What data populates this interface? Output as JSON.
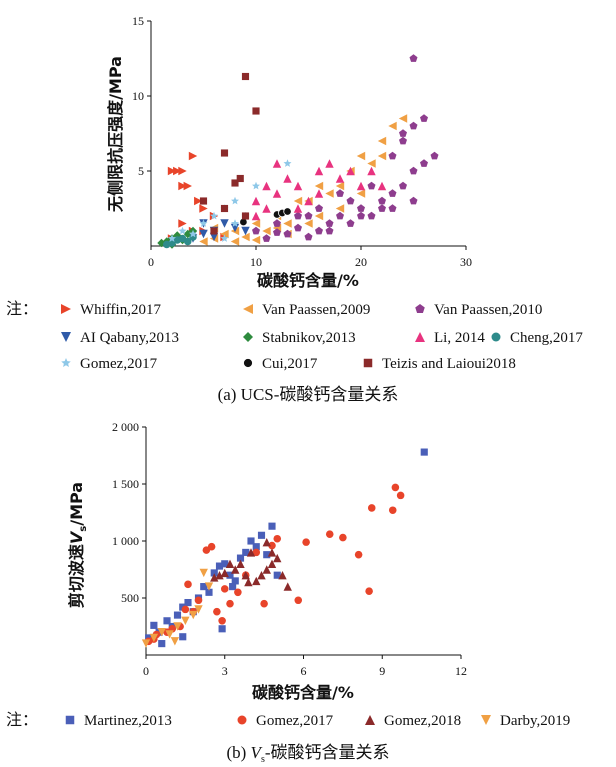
{
  "chart_data": [
    {
      "type": "scatter",
      "xlabel": "碳酸钙含量/%",
      "ylabel": "无侧限抗压强度/MPa",
      "xlim": [
        0,
        30
      ],
      "ylim": [
        0,
        15
      ],
      "x_ticks": [
        "0",
        "10",
        "20",
        "30"
      ],
      "y_ticks": [
        "5",
        "10",
        "15"
      ],
      "caption": "(a) UCS-碳酸钙含量关系",
      "legend_prefix": "注：",
      "series": [
        {
          "name": "Whiffin,2017",
          "marker": "tri-right",
          "color": "#e8442a",
          "points": [
            [
              2,
              5
            ],
            [
              2.5,
              5
            ],
            [
              3,
              5
            ],
            [
              3,
              4
            ],
            [
              3.5,
              4
            ],
            [
              4,
              6
            ],
            [
              4.5,
              3
            ],
            [
              5,
              2.5
            ],
            [
              3,
              1.5
            ],
            [
              4,
              1
            ],
            [
              2,
              0.5
            ],
            [
              6,
              2
            ],
            [
              5,
              1
            ],
            [
              7,
              0.6
            ]
          ]
        },
        {
          "name": "Van Paassen,2009",
          "marker": "tri-left",
          "color": "#f0a044",
          "points": [
            [
              5,
              0.3
            ],
            [
              6,
              0.5
            ],
            [
              7,
              0.8
            ],
            [
              8,
              1
            ],
            [
              9,
              0.6
            ],
            [
              10,
              1.5
            ],
            [
              11,
              1
            ],
            [
              12,
              2
            ],
            [
              13,
              1.5
            ],
            [
              14,
              3
            ],
            [
              15,
              3
            ],
            [
              16,
              4
            ],
            [
              17,
              3.5
            ],
            [
              18,
              4
            ],
            [
              19,
              5
            ],
            [
              20,
              6
            ],
            [
              21,
              5.5
            ],
            [
              22,
              7
            ],
            [
              23,
              8
            ],
            [
              24,
              8.5
            ],
            [
              22,
              6
            ],
            [
              20,
              3.5
            ],
            [
              18,
              2.5
            ],
            [
              16,
              2
            ],
            [
              15,
              1.5
            ],
            [
              13,
              0.8
            ],
            [
              12,
              1.2
            ],
            [
              10,
              0.4
            ],
            [
              8,
              0.3
            ],
            [
              6,
              1.2
            ]
          ]
        },
        {
          "name": "Van Paassen,2010",
          "marker": "pentagon",
          "color": "#8e3d8e",
          "points": [
            [
              10,
              1
            ],
            [
              12,
              1.5
            ],
            [
              13,
              0.8
            ],
            [
              14,
              1.2
            ],
            [
              15,
              2
            ],
            [
              16,
              1
            ],
            [
              17,
              1.5
            ],
            [
              18,
              2
            ],
            [
              19,
              3
            ],
            [
              20,
              2.5
            ],
            [
              21,
              4
            ],
            [
              22,
              3
            ],
            [
              23,
              3.5
            ],
            [
              24,
              4
            ],
            [
              25,
              5
            ],
            [
              26,
              5.5
            ],
            [
              27,
              6
            ],
            [
              23,
              6
            ],
            [
              24,
              7
            ],
            [
              25,
              8
            ],
            [
              24,
              7.5
            ],
            [
              26,
              8.5
            ],
            [
              25,
              12.5
            ],
            [
              20,
              2
            ],
            [
              22,
              2.5
            ],
            [
              18,
              3.5
            ],
            [
              16,
              2.5
            ],
            [
              17,
              1
            ],
            [
              19,
              1.5
            ],
            [
              21,
              2
            ],
            [
              23,
              2.5
            ],
            [
              25,
              3
            ],
            [
              15,
              0.6
            ],
            [
              14,
              2
            ],
            [
              12,
              0.9
            ],
            [
              11,
              0.5
            ]
          ]
        },
        {
          "name": "AI Qabany,2013",
          "marker": "tri-down",
          "color": "#2f5aa8",
          "points": [
            [
              4,
              0.5
            ],
            [
              5,
              0.8
            ],
            [
              6,
              1
            ],
            [
              7,
              1.5
            ],
            [
              8,
              1.2
            ],
            [
              9,
              1
            ],
            [
              5,
              1.5
            ],
            [
              6,
              0.6
            ]
          ]
        },
        {
          "name": "Stabnikov,2013",
          "marker": "diamond",
          "color": "#2e8b3e",
          "points": [
            [
              1,
              0.2
            ],
            [
              1.5,
              0.3
            ],
            [
              2,
              0.5
            ],
            [
              2.5,
              0.7
            ],
            [
              3,
              0.4
            ],
            [
              3.5,
              0.8
            ],
            [
              4,
              1
            ],
            [
              2,
              0.1
            ]
          ]
        },
        {
          "name": "Li, 2014",
          "marker": "tri-up",
          "color": "#e8337f",
          "points": [
            [
              10,
              3
            ],
            [
              11,
              2.5
            ],
            [
              12,
              5.5
            ],
            [
              13,
              4.5
            ],
            [
              14,
              4
            ],
            [
              15,
              3
            ],
            [
              16,
              5
            ],
            [
              17,
              5.5
            ],
            [
              18,
              4.5
            ],
            [
              19,
              5
            ],
            [
              20,
              4
            ],
            [
              21,
              5
            ],
            [
              22,
              4
            ],
            [
              16,
              3.5
            ],
            [
              14,
              2.5
            ],
            [
              12,
              3.5
            ],
            [
              10,
              2
            ],
            [
              11,
              4
            ]
          ]
        },
        {
          "name": "Cheng,2017",
          "marker": "circle",
          "color": "#2e8b8b",
          "points": [
            [
              2,
              0.2
            ],
            [
              2.5,
              0.4
            ],
            [
              3,
              0.5
            ],
            [
              3.5,
              0.3
            ],
            [
              4,
              0.6
            ],
            [
              1.5,
              0.1
            ]
          ]
        },
        {
          "name": "Gomez,2017",
          "marker": "star",
          "color": "#8ec8e8",
          "points": [
            [
              2,
              0.5
            ],
            [
              3,
              1
            ],
            [
              4,
              0.8
            ],
            [
              5,
              1.5
            ],
            [
              6,
              2
            ],
            [
              7,
              2.5
            ],
            [
              8,
              3
            ],
            [
              9,
              2
            ],
            [
              10,
              4
            ],
            [
              13,
              5.5
            ],
            [
              6,
              1
            ],
            [
              7,
              0.5
            ],
            [
              8,
              1.5
            ]
          ]
        },
        {
          "name": "Cui,2017",
          "marker": "ball",
          "color": "#111111",
          "points": [
            [
              8.8,
              1.6
            ],
            [
              12,
              2.1
            ],
            [
              12.5,
              2.2
            ],
            [
              13,
              2.3
            ]
          ]
        },
        {
          "name": "Teizis and Laioui2018",
          "marker": "square",
          "color": "#8b2a2a",
          "points": [
            [
              6,
              1
            ],
            [
              7,
              2.5
            ],
            [
              7,
              6.2
            ],
            [
              8,
              4.2
            ],
            [
              8.5,
              4.5
            ],
            [
              9,
              11.3
            ],
            [
              10,
              9
            ],
            [
              5,
              3
            ],
            [
              9,
              2
            ]
          ]
        }
      ]
    },
    {
      "type": "scatter",
      "xlabel": "碳酸钙含量/%",
      "ylabel_prefix": "剪切波速",
      "ylabel_var": "V",
      "ylabel_sub": "s",
      "ylabel_unit": "/MPa",
      "xlim": [
        0,
        12
      ],
      "ylim": [
        0,
        2000
      ],
      "x_ticks": [
        "0",
        "3",
        "6",
        "9",
        "12"
      ],
      "y_ticks": [
        "500",
        "1 000",
        "1 500",
        "2 000"
      ],
      "caption_prefix": "(b) ",
      "caption_var": "V",
      "caption_sub": "s",
      "caption_suffix": "-碳酸钙含量关系",
      "legend_prefix": "注：",
      "series": [
        {
          "name": "Martinez,2013",
          "marker": "square",
          "color": "#4a5fb8",
          "points": [
            [
              0.1,
              150
            ],
            [
              0.3,
              260
            ],
            [
              0.5,
              200
            ],
            [
              0.8,
              300
            ],
            [
              1,
              250
            ],
            [
              1.2,
              350
            ],
            [
              1.4,
              420
            ],
            [
              1.6,
              460
            ],
            [
              1.8,
              380
            ],
            [
              2,
              500
            ],
            [
              2.2,
              600
            ],
            [
              2.4,
              550
            ],
            [
              2.6,
              720
            ],
            [
              2.8,
              780
            ],
            [
              3,
              800
            ],
            [
              3.2,
              700
            ],
            [
              3.4,
              650
            ],
            [
              3.6,
              850
            ],
            [
              3.8,
              900
            ],
            [
              4,
              1000
            ],
            [
              4.2,
              950
            ],
            [
              4.4,
              1050
            ],
            [
              4.6,
              880
            ],
            [
              4.8,
              1130
            ],
            [
              5,
              700
            ],
            [
              2.9,
              230
            ],
            [
              3.3,
              600
            ],
            [
              1.4,
              160
            ],
            [
              10.6,
              1780
            ],
            [
              0.6,
              100
            ]
          ]
        },
        {
          "name": "Gomez,2017",
          "marker": "circle",
          "color": "#e8442a",
          "points": [
            [
              0.1,
              120
            ],
            [
              0.4,
              180
            ],
            [
              0.8,
              200
            ],
            [
              1,
              230
            ],
            [
              1.3,
              250
            ],
            [
              1.5,
              400
            ],
            [
              1.6,
              620
            ],
            [
              1.8,
              380
            ],
            [
              2,
              480
            ],
            [
              2.3,
              920
            ],
            [
              2.5,
              950
            ],
            [
              2.7,
              380
            ],
            [
              2.9,
              300
            ],
            [
              3,
              580
            ],
            [
              3.2,
              450
            ],
            [
              3.5,
              550
            ],
            [
              3.8,
              700
            ],
            [
              4.2,
              900
            ],
            [
              4.5,
              450
            ],
            [
              4.8,
              960
            ],
            [
              5,
              1020
            ],
            [
              5.8,
              480
            ],
            [
              6.1,
              990
            ],
            [
              7,
              1060
            ],
            [
              7.5,
              1030
            ],
            [
              8.1,
              880
            ],
            [
              8.5,
              560
            ],
            [
              8.6,
              1290
            ],
            [
              9.4,
              1270
            ],
            [
              9.5,
              1470
            ],
            [
              9.7,
              1400
            ],
            [
              0.3,
              140
            ]
          ]
        },
        {
          "name": "Gomez,2018",
          "marker": "tri-up",
          "color": "#8b2a2a",
          "points": [
            [
              2.8,
              700
            ],
            [
              3,
              720
            ],
            [
              3.2,
              800
            ],
            [
              3.4,
              750
            ],
            [
              3.6,
              800
            ],
            [
              3.8,
              700
            ],
            [
              4,
              900
            ],
            [
              4.2,
              650
            ],
            [
              4.4,
              700
            ],
            [
              4.6,
              750
            ],
            [
              4.8,
              800
            ],
            [
              5,
              850
            ],
            [
              5.2,
              700
            ],
            [
              5.4,
              600
            ],
            [
              4.6,
              990
            ],
            [
              4.8,
              900
            ],
            [
              2.6,
              680
            ],
            [
              3.9,
              640
            ]
          ]
        },
        {
          "name": "Darby,2019",
          "marker": "tri-down",
          "color": "#f0a044",
          "points": [
            [
              0,
              100
            ],
            [
              0.3,
              150
            ],
            [
              0.6,
              200
            ],
            [
              0.9,
              180
            ],
            [
              1.2,
              250
            ],
            [
              1.5,
              300
            ],
            [
              1.8,
              350
            ],
            [
              2,
              400
            ],
            [
              2.2,
              720
            ],
            [
              2.4,
              600
            ],
            [
              1.1,
              120
            ]
          ]
        }
      ]
    }
  ]
}
